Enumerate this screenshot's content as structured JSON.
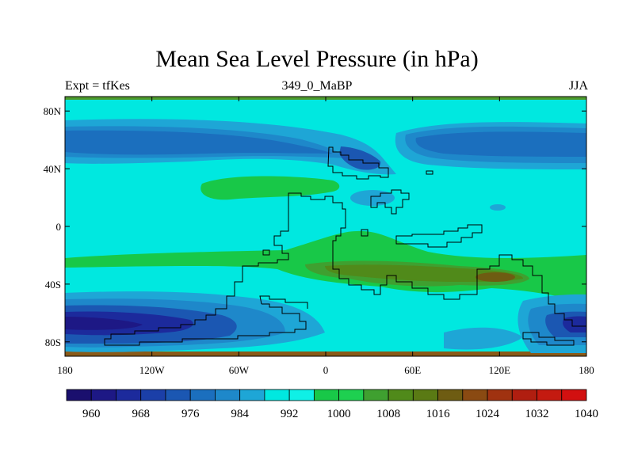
{
  "title": "Mean Sea Level Pressure (in hPa)",
  "subtitle_left": "Expt = tfKes",
  "subtitle_center": "349_0_MaBP",
  "subtitle_right": "JJA",
  "map": {
    "x_ticks": [
      {
        "value": -180,
        "label": "180"
      },
      {
        "value": -120,
        "label": "120W"
      },
      {
        "value": -60,
        "label": "60W"
      },
      {
        "value": 0,
        "label": "0"
      },
      {
        "value": 60,
        "label": "60E"
      },
      {
        "value": 120,
        "label": "120E"
      },
      {
        "value": 180,
        "label": "180"
      }
    ],
    "y_ticks": [
      {
        "value": 80,
        "label": "80N"
      },
      {
        "value": 40,
        "label": "40N"
      },
      {
        "value": 0,
        "label": "0"
      },
      {
        "value": -40,
        "label": "40S"
      },
      {
        "value": -80,
        "label": "80S"
      }
    ],
    "lon_range": [
      -180,
      180
    ],
    "lat_range": [
      -90,
      90
    ],
    "background_level": "1000-1004"
  },
  "colorbar": {
    "colors": [
      "#1a0f6e",
      "#1d1885",
      "#1c2a9c",
      "#1b3fa8",
      "#1b57b2",
      "#1b6fbe",
      "#1e88ca",
      "#1ea6d6",
      "#00e8e0",
      "#0ff0e6",
      "#18c848",
      "#1ed050",
      "#3fa030",
      "#508a1a",
      "#5a7a14",
      "#6e5c12",
      "#8a4a12",
      "#a03210",
      "#b01e10",
      "#c41a10",
      "#d21010"
    ],
    "labels": [
      "960",
      "968",
      "976",
      "984",
      "992",
      "1000",
      "1008",
      "1016",
      "1024",
      "1032",
      "1040"
    ]
  }
}
